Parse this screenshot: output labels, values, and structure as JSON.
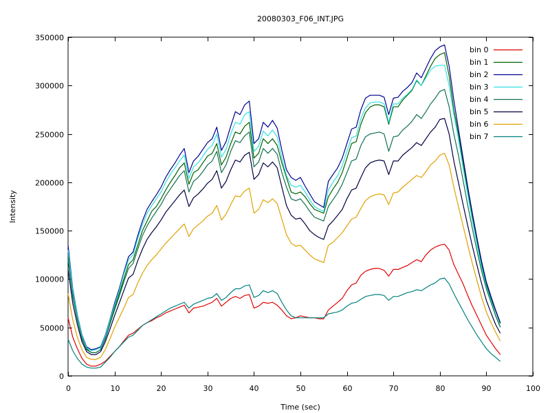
{
  "chart_data": {
    "type": "line",
    "title": "20080303_F06_INT.JPG",
    "xlabel": "Time (sec)",
    "ylabel": "Intensity",
    "xlim": [
      0,
      100
    ],
    "ylim": [
      0,
      350000
    ],
    "xticks": [
      0,
      10,
      20,
      30,
      40,
      50,
      60,
      70,
      80,
      90,
      100
    ],
    "yticks": [
      0,
      50000,
      100000,
      150000,
      200000,
      250000,
      300000,
      350000
    ],
    "grid": false,
    "legend_position": "top-right",
    "x": [
      0,
      1,
      2,
      3,
      4,
      5,
      6,
      7,
      8,
      9,
      10,
      11,
      12,
      13,
      14,
      15,
      16,
      17,
      18,
      19,
      20,
      21,
      22,
      23,
      24,
      25,
      26,
      27,
      28,
      29,
      30,
      31,
      32,
      33,
      34,
      35,
      36,
      37,
      38,
      39,
      40,
      41,
      42,
      43,
      44,
      45,
      46,
      47,
      48,
      49,
      50,
      51,
      52,
      53,
      54,
      55,
      56,
      57,
      58,
      59,
      60,
      61,
      62,
      63,
      64,
      65,
      66,
      67,
      68,
      69,
      70,
      71,
      72,
      73,
      74,
      75,
      76,
      77,
      78,
      79,
      80,
      81,
      82,
      83,
      84,
      85,
      86,
      87,
      88,
      89,
      90,
      91,
      92,
      93
    ],
    "series": [
      {
        "name": "bin 0",
        "color": "#e00000",
        "values": [
          60000,
          40000,
          28000,
          18000,
          12000,
          10000,
          10000,
          12000,
          15000,
          20000,
          25000,
          30000,
          36000,
          42000,
          44000,
          48000,
          52000,
          55000,
          57000,
          60000,
          62000,
          65000,
          67000,
          69000,
          71000,
          73000,
          65000,
          70000,
          71000,
          72000,
          74000,
          76000,
          80000,
          72000,
          76000,
          80000,
          82000,
          80000,
          83000,
          84000,
          70000,
          72000,
          76000,
          75000,
          76000,
          73000,
          68000,
          62000,
          59000,
          60000,
          62000,
          61000,
          60000,
          60000,
          59000,
          59000,
          68000,
          72000,
          76000,
          80000,
          88000,
          94000,
          96000,
          104000,
          108000,
          110000,
          111000,
          111000,
          109000,
          103000,
          110000,
          110000,
          112000,
          114000,
          117000,
          120000,
          118000,
          125000,
          130000,
          133000,
          135000,
          136000,
          130000,
          115000,
          105000,
          95000,
          83000,
          72000,
          62000,
          52000,
          42000,
          35000,
          28000,
          22000
        ]
      },
      {
        "name": "bin 1",
        "color": "#006000",
        "values": [
          125000,
          85000,
          60000,
          40000,
          28000,
          24000,
          24000,
          27000,
          40000,
          55000,
          70000,
          85000,
          100000,
          115000,
          120000,
          135000,
          150000,
          160000,
          170000,
          175000,
          183000,
          192000,
          200000,
          207000,
          215000,
          220000,
          198000,
          210000,
          213000,
          220000,
          227000,
          230000,
          240000,
          218000,
          226000,
          240000,
          252000,
          250000,
          258000,
          262000,
          225000,
          230000,
          245000,
          240000,
          245000,
          238000,
          220000,
          205000,
          190000,
          188000,
          190000,
          185000,
          178000,
          172000,
          170000,
          168000,
          185000,
          193000,
          200000,
          210000,
          225000,
          240000,
          242000,
          260000,
          272000,
          278000,
          280000,
          280000,
          278000,
          260000,
          278000,
          278000,
          285000,
          290000,
          295000,
          305000,
          300000,
          310000,
          320000,
          328000,
          332000,
          334000,
          310000,
          275000,
          250000,
          220000,
          192000,
          165000,
          140000,
          115000,
          95000,
          80000,
          67000,
          54000
        ]
      },
      {
        "name": "bin 2",
        "color": "#000090",
        "values": [
          135000,
          90000,
          63000,
          42000,
          30000,
          27000,
          28000,
          30000,
          42000,
          58000,
          75000,
          90000,
          107000,
          123000,
          128000,
          145000,
          160000,
          172000,
          180000,
          187000,
          195000,
          205000,
          213000,
          220000,
          228000,
          235000,
          210000,
          222000,
          227000,
          234000,
          241000,
          245000,
          257000,
          233000,
          242000,
          258000,
          273000,
          270000,
          280000,
          284000,
          240000,
          245000,
          262000,
          257000,
          264000,
          256000,
          233000,
          213000,
          205000,
          202000,
          205000,
          196000,
          188000,
          180000,
          177000,
          174000,
          201000,
          208000,
          215000,
          225000,
          240000,
          255000,
          257000,
          275000,
          287000,
          290000,
          290000,
          290000,
          288000,
          270000,
          287000,
          288000,
          294000,
          298000,
          303000,
          313000,
          308000,
          318000,
          328000,
          336000,
          340000,
          342000,
          320000,
          285000,
          255000,
          225000,
          195000,
          168000,
          142000,
          118000,
          97000,
          82000,
          68000,
          55000
        ]
      },
      {
        "name": "bin 3",
        "color": "#30e0e0",
        "values": [
          130000,
          88000,
          62000,
          41000,
          29000,
          26000,
          27000,
          29000,
          41000,
          57000,
          73000,
          88000,
          105000,
          120000,
          125000,
          142000,
          156000,
          168000,
          176000,
          183000,
          190000,
          200000,
          208000,
          215000,
          222000,
          228000,
          204000,
          216000,
          220000,
          227000,
          234000,
          238000,
          250000,
          226000,
          234000,
          250000,
          262000,
          260000,
          270000,
          273000,
          232000,
          237000,
          253000,
          248000,
          254000,
          247000,
          225000,
          207000,
          197000,
          195000,
          197000,
          190000,
          182000,
          175000,
          172000,
          170000,
          192000,
          200000,
          207000,
          217000,
          232000,
          246000,
          248000,
          266000,
          277000,
          282000,
          283000,
          283000,
          281000,
          262000,
          281000,
          281000,
          287000,
          291000,
          296000,
          306000,
          300000,
          308000,
          316000,
          320000,
          321000,
          321000,
          300000,
          270000,
          245000,
          215000,
          187000,
          160000,
          135000,
          112000,
          92000,
          78000,
          63000,
          51000
        ]
      },
      {
        "name": "bin 4",
        "color": "#107050",
        "values": [
          120000,
          82000,
          58000,
          38000,
          27000,
          24000,
          24000,
          27000,
          38000,
          53000,
          68000,
          82000,
          97000,
          111000,
          116000,
          131000,
          145000,
          155000,
          163000,
          170000,
          177000,
          186000,
          193000,
          200000,
          207000,
          212000,
          190000,
          201000,
          205000,
          211000,
          218000,
          222000,
          232000,
          210000,
          218000,
          232000,
          243000,
          241000,
          248000,
          252000,
          216000,
          221000,
          235000,
          230000,
          235000,
          229000,
          210000,
          195000,
          183000,
          181000,
          183000,
          177000,
          170000,
          164000,
          162000,
          160000,
          175000,
          182000,
          189000,
          198000,
          210000,
          222000,
          224000,
          238000,
          247000,
          250000,
          251000,
          252000,
          250000,
          232000,
          247000,
          248000,
          254000,
          258000,
          263000,
          270000,
          266000,
          273000,
          281000,
          287000,
          294000,
          296000,
          278000,
          250000,
          228000,
          202000,
          176000,
          152000,
          129000,
          108000,
          90000,
          76000,
          62000,
          50000
        ]
      },
      {
        "name": "bin 5",
        "color": "#000040",
        "values": [
          110000,
          75000,
          53000,
          35000,
          25000,
          22000,
          22000,
          25000,
          35000,
          48000,
          62000,
          75000,
          88000,
          101000,
          105000,
          119000,
          131000,
          141000,
          148000,
          154000,
          161000,
          169000,
          175000,
          181000,
          187000,
          192000,
          175000,
          184000,
          188000,
          193000,
          199000,
          203000,
          212000,
          194000,
          201000,
          213000,
          223000,
          221000,
          228000,
          231000,
          203000,
          208000,
          220000,
          216000,
          221000,
          215000,
          195000,
          176000,
          166000,
          162000,
          163000,
          157000,
          150000,
          146000,
          143000,
          141000,
          155000,
          160000,
          166000,
          172000,
          183000,
          192000,
          194000,
          205000,
          215000,
          220000,
          222000,
          223000,
          222000,
          208000,
          222000,
          222000,
          228000,
          232000,
          236000,
          241000,
          238000,
          245000,
          252000,
          257000,
          265000,
          266000,
          250000,
          222000,
          200000,
          177000,
          155000,
          134000,
          114000,
          95000,
          78000,
          65000,
          53000,
          44000
        ]
      },
      {
        "name": "bin 6",
        "color": "#e0a000",
        "values": [
          85000,
          58000,
          40000,
          27000,
          19000,
          17000,
          17000,
          19000,
          27000,
          38000,
          50000,
          60000,
          70000,
          81000,
          84000,
          96000,
          106000,
          114000,
          120000,
          125000,
          131000,
          137000,
          142000,
          147000,
          152000,
          157000,
          144000,
          152000,
          156000,
          160000,
          165000,
          168000,
          176000,
          161000,
          167000,
          177000,
          186000,
          185000,
          191000,
          194000,
          168000,
          172000,
          182000,
          179000,
          183000,
          178000,
          162000,
          146000,
          137000,
          134000,
          135000,
          130000,
          125000,
          121000,
          119000,
          117000,
          135000,
          138000,
          143000,
          148000,
          155000,
          162000,
          164000,
          173000,
          181000,
          185000,
          187000,
          188000,
          187000,
          177000,
          189000,
          190000,
          195000,
          199000,
          203000,
          207000,
          205000,
          211000,
          218000,
          222000,
          228000,
          230000,
          218000,
          195000,
          175000,
          155000,
          135000,
          116000,
          98000,
          81000,
          66000,
          55000,
          45000,
          36000
        ]
      },
      {
        "name": "bin 7",
        "color": "#008080",
        "values": [
          38000,
          26000,
          18000,
          12000,
          9000,
          8000,
          8000,
          9000,
          14000,
          19000,
          25000,
          30000,
          35000,
          40000,
          42000,
          47000,
          52000,
          55000,
          58000,
          61000,
          64000,
          67000,
          70000,
          72000,
          74000,
          76000,
          70000,
          74000,
          76000,
          78000,
          80000,
          81000,
          85000,
          78000,
          81000,
          86000,
          90000,
          90000,
          93000,
          94000,
          81000,
          83000,
          88000,
          86000,
          88000,
          85000,
          76000,
          68000,
          62000,
          60000,
          60000,
          60000,
          60000,
          60000,
          60000,
          60000,
          64000,
          65000,
          66000,
          68000,
          72000,
          75000,
          76000,
          79000,
          82000,
          83000,
          84000,
          84000,
          83000,
          78000,
          82000,
          82000,
          84000,
          86000,
          87000,
          89000,
          88000,
          91000,
          94000,
          96000,
          100000,
          101000,
          95000,
          85000,
          76000,
          67000,
          58000,
          50000,
          42000,
          35000,
          28000,
          23000,
          19000,
          15000
        ]
      }
    ]
  }
}
